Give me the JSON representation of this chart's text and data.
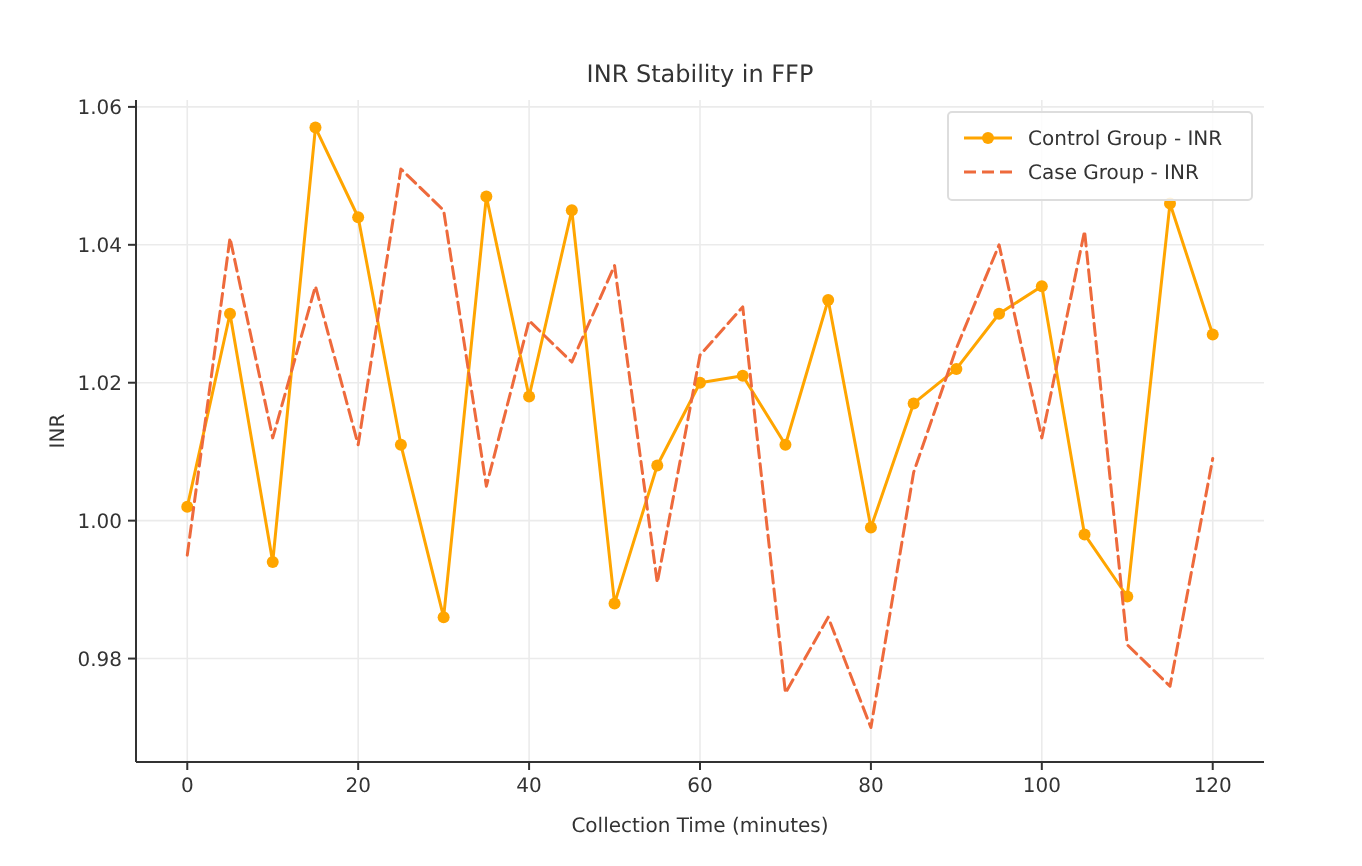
{
  "chart_data": {
    "type": "line",
    "title": "INR Stability in FFP",
    "xlabel": "Collection Time (minutes)",
    "ylabel": "INR",
    "x": [
      0,
      5,
      10,
      15,
      20,
      25,
      30,
      35,
      40,
      45,
      50,
      55,
      60,
      65,
      70,
      75,
      80,
      85,
      90,
      95,
      100,
      105,
      110,
      115,
      120
    ],
    "series": [
      {
        "name": "Control Group - INR",
        "color": "#ffa500",
        "marker": "circle",
        "line_style": "solid",
        "values": [
          1.002,
          1.03,
          0.994,
          1.057,
          1.044,
          1.011,
          0.986,
          1.047,
          1.018,
          1.045,
          0.988,
          1.008,
          1.02,
          1.021,
          1.011,
          1.032,
          0.999,
          1.017,
          1.022,
          1.03,
          1.034,
          0.998,
          0.989,
          1.046,
          1.027
        ]
      },
      {
        "name": "Case Group - INR",
        "color": "#ee6a3c",
        "marker": "none",
        "line_style": "dashed",
        "values": [
          0.995,
          1.041,
          1.012,
          1.034,
          1.011,
          1.051,
          1.045,
          1.005,
          1.029,
          1.023,
          1.037,
          0.991,
          1.024,
          1.031,
          0.975,
          0.986,
          0.97,
          1.007,
          1.025,
          1.04,
          1.012,
          1.042,
          0.982,
          0.976,
          1.009
        ]
      }
    ],
    "xlim": [
      -6,
      126
    ],
    "xticks": [
      0,
      20,
      40,
      60,
      80,
      100,
      120
    ],
    "ylim": [
      0.965,
      1.061
    ],
    "yticks": [
      {
        "value": 0.98,
        "label": "0.98"
      },
      {
        "value": 1.0,
        "label": "1.00"
      },
      {
        "value": 1.02,
        "label": "1.02"
      },
      {
        "value": 1.04,
        "label": "1.04"
      },
      {
        "value": 1.06,
        "label": "1.06"
      }
    ],
    "grid": true,
    "legend": "top right"
  }
}
